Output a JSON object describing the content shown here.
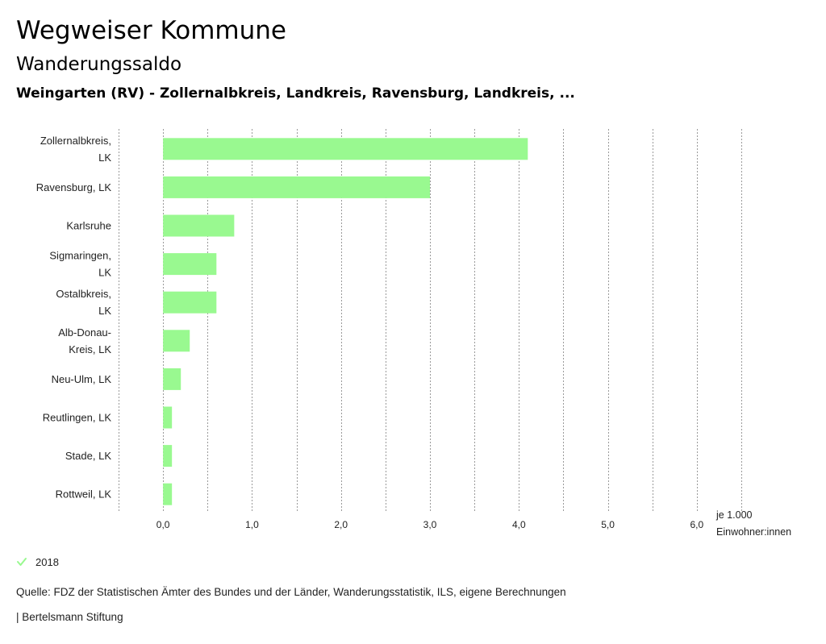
{
  "header": {
    "title": "Wegweiser Kommune",
    "subtitle": "Wanderungssaldo",
    "region": "Weingarten (RV) - Zollernalbkreis, Landkreis, Ravensburg, Landkreis, ..."
  },
  "chart_data": {
    "type": "bar",
    "orientation": "horizontal",
    "categories": [
      [
        "Zollernalbkreis,",
        "LK"
      ],
      [
        "Ravensburg, LK"
      ],
      [
        "Karlsruhe"
      ],
      [
        "Sigmaringen,",
        "LK"
      ],
      [
        "Ostalbkreis,",
        "LK"
      ],
      [
        "Alb-Donau-",
        "Kreis, LK"
      ],
      [
        "Neu-Ulm, LK"
      ],
      [
        "Reutlingen, LK"
      ],
      [
        "Stade, LK"
      ],
      [
        "Rottweil, LK"
      ]
    ],
    "series": [
      {
        "name": "2018",
        "color": "#99f990",
        "values": [
          4.1,
          3.0,
          0.8,
          0.6,
          0.6,
          0.3,
          0.2,
          0.1,
          0.1,
          0.1
        ]
      }
    ],
    "x_ticks": [
      "0,0",
      "1,0",
      "2,0",
      "3,0",
      "4,0",
      "5,0",
      "6,0"
    ],
    "xlim": [
      -0.5,
      6.5
    ],
    "unit_label": [
      "je 1.000",
      "Einwohner:innen"
    ],
    "grid": true
  },
  "legend": {
    "label": "2018",
    "color": "#99f990"
  },
  "footer": {
    "source": "Quelle: FDZ der Statistischen Ämter des Bundes und der Länder, Wanderungsstatistik, ILS, eigene Berechnungen",
    "brand": "| Bertelsmann Stiftung"
  }
}
